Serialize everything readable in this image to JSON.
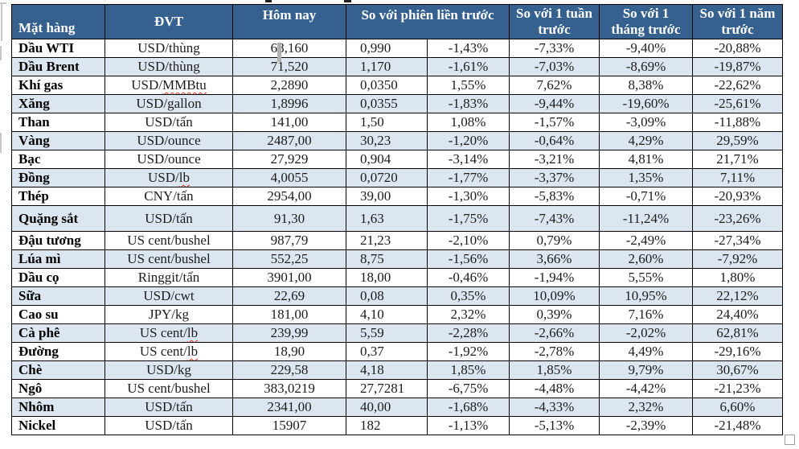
{
  "colors": {
    "header_bg": "#36618f",
    "header_text": "#ffffff",
    "row_bg": "#ffffff",
    "row_alt_bg": "#dce6f0",
    "border": "#000000",
    "spellcheck_squiggle": "#e03020",
    "value_text": "#1c1c1c"
  },
  "table": {
    "header": {
      "commodity": "Mặt hàng",
      "unit": "ĐVT",
      "today": "Hôm nay",
      "prev_session": "So với phiên liền trước",
      "week": "So với 1 tuần trước",
      "month": "So với 1 tháng trước",
      "year": "So với 1 năm trước"
    },
    "rows": [
      {
        "name": "Dầu WTI",
        "unit_pre": "USD/thùng",
        "unit_sq": "",
        "today": "68,160",
        "change_abs": "0,990",
        "change_pct": "-1,43%",
        "week_pct": "-7,33%",
        "month_pct": "-9,40%",
        "year_pct": "-20,88%",
        "alt": false,
        "tall": false
      },
      {
        "name": "Dầu Brent",
        "unit_pre": "USD/thùng",
        "unit_sq": "",
        "today": "71,520",
        "change_abs": "1,170",
        "change_pct": "-1,61%",
        "week_pct": "-7,03%",
        "month_pct": "-8,69%",
        "year_pct": "-19,87%",
        "alt": true,
        "tall": false
      },
      {
        "name": "Khí gas",
        "unit_pre": "USD/",
        "unit_sq": "MMBtu",
        "today": "2,2890",
        "change_abs": "0,0350",
        "change_pct": "1,55%",
        "week_pct": "7,62%",
        "month_pct": "8,38%",
        "year_pct": "-22,62%",
        "alt": false,
        "tall": false
      },
      {
        "name": "Xăng",
        "unit_pre": "USD/gallon",
        "unit_sq": "",
        "today": "1,8996",
        "change_abs": "0,0355",
        "change_pct": "-1,83%",
        "week_pct": "-9,44%",
        "month_pct": "-19,60%",
        "year_pct": "-25,61%",
        "alt": true,
        "tall": false
      },
      {
        "name": "Than",
        "unit_pre": "USD/tấn",
        "unit_sq": "",
        "today": "141,00",
        "change_abs": "1,50",
        "change_pct": "1,08%",
        "week_pct": "-1,57%",
        "month_pct": "-3,09%",
        "year_pct": "-11,88%",
        "alt": false,
        "tall": false
      },
      {
        "name": "Vàng",
        "unit_pre": "USD/ounce",
        "unit_sq": "",
        "today": "2487,00",
        "change_abs": "30,23",
        "change_pct": "-1,20%",
        "week_pct": "-0,64%",
        "month_pct": "4,29%",
        "year_pct": "29,59%",
        "alt": true,
        "tall": false
      },
      {
        "name": "Bạc",
        "unit_pre": "USD/ounce",
        "unit_sq": "",
        "today": "27,929",
        "change_abs": "0,904",
        "change_pct": "-3,14%",
        "week_pct": "-3,21%",
        "month_pct": "4,81%",
        "year_pct": "21,71%",
        "alt": false,
        "tall": false
      },
      {
        "name": "Đồng",
        "unit_pre": "USD/",
        "unit_sq": "lb",
        "today": "4,0055",
        "change_abs": "0,0720",
        "change_pct": "-1,77%",
        "week_pct": "-3,37%",
        "month_pct": "1,35%",
        "year_pct": "7,11%",
        "alt": true,
        "tall": false
      },
      {
        "name": "Thép",
        "unit_pre": "CNY/tấn",
        "unit_sq": "",
        "today": "2954,00",
        "change_abs": "39,00",
        "change_pct": "-1,30%",
        "week_pct": "-5,83%",
        "month_pct": "-0,71%",
        "year_pct": "-20,93%",
        "alt": false,
        "tall": false
      },
      {
        "name": "Quặng sắt",
        "unit_pre": "USD/tấn",
        "unit_sq": "",
        "today": "91,30",
        "change_abs": "1,63",
        "change_pct": "-1,75%",
        "week_pct": "-7,43%",
        "month_pct": "-11,24%",
        "year_pct": "-23,26%",
        "alt": true,
        "tall": true
      },
      {
        "name": "Đậu tương",
        "unit_pre": "US cent/bushel",
        "unit_sq": "",
        "today": "987,79",
        "change_abs": "21,23",
        "change_pct": "-2,10%",
        "week_pct": "0,79%",
        "month_pct": "-2,49%",
        "year_pct": "-27,34%",
        "alt": false,
        "tall": false
      },
      {
        "name": "Lúa mì",
        "unit_pre": "US cent/bushel",
        "unit_sq": "",
        "today": "552,25",
        "change_abs": "8,75",
        "change_pct": "-1,56%",
        "week_pct": "3,66%",
        "month_pct": "2,60%",
        "year_pct": "-7,92%",
        "alt": true,
        "tall": false
      },
      {
        "name": "Dầu cọ",
        "unit_pre": "Ringgit/tấn",
        "unit_sq": "",
        "today": "3901,00",
        "change_abs": "18,00",
        "change_pct": "-0,46%",
        "week_pct": "-1,94%",
        "month_pct": "5,55%",
        "year_pct": "1,80%",
        "alt": false,
        "tall": false
      },
      {
        "name": "Sữa",
        "unit_pre": "USD/cwt",
        "unit_sq": "",
        "today": "22,69",
        "change_abs": "0,08",
        "change_pct": "0,35%",
        "week_pct": "10,09%",
        "month_pct": "10,95%",
        "year_pct": "22,12%",
        "alt": true,
        "tall": false
      },
      {
        "name": "Cao su",
        "unit_pre": "JPY/kg",
        "unit_sq": "",
        "today": "181,00",
        "change_abs": "4,10",
        "change_pct": "2,32%",
        "week_pct": "0,39%",
        "month_pct": "7,16%",
        "year_pct": "24,40%",
        "alt": false,
        "tall": false
      },
      {
        "name": "Cà phê",
        "unit_pre": "US cent/",
        "unit_sq": "lb",
        "today": "239,99",
        "change_abs": "5,59",
        "change_pct": "-2,28%",
        "week_pct": "-2,66%",
        "month_pct": "-2,02%",
        "year_pct": "62,81%",
        "alt": true,
        "tall": false
      },
      {
        "name": "Đường",
        "unit_pre": "US cent/",
        "unit_sq": "lb",
        "today": "18,90",
        "change_abs": "0,37",
        "change_pct": "-1,92%",
        "week_pct": "-2,78%",
        "month_pct": "4,49%",
        "year_pct": "-29,16%",
        "alt": false,
        "tall": false
      },
      {
        "name": "Chè",
        "unit_pre": "USD/kg",
        "unit_sq": "",
        "today": "229,58",
        "change_abs": "4,18",
        "change_pct": "1,85%",
        "week_pct": "1,85%",
        "month_pct": "9,79%",
        "year_pct": "30,67%",
        "alt": true,
        "tall": false
      },
      {
        "name": "Ngô",
        "unit_pre": "US cent/bushel",
        "unit_sq": "",
        "today": "383,0219",
        "change_abs": "27,7281",
        "change_pct": "-6,75%",
        "week_pct": "-4,48%",
        "month_pct": "-4,42%",
        "year_pct": "-21,23%",
        "alt": false,
        "tall": false
      },
      {
        "name": "Nhôm",
        "unit_pre": "USD/tấn",
        "unit_sq": "",
        "today": "2341,00",
        "change_abs": "40,00",
        "change_pct": "-1,68%",
        "week_pct": "-4,33%",
        "month_pct": "2,32%",
        "year_pct": "6,60%",
        "alt": true,
        "tall": false
      },
      {
        "name": "Nickel",
        "unit_pre": "USD/tấn",
        "unit_sq": "",
        "today": "15907",
        "change_abs": "182",
        "change_pct": "-1,13%",
        "week_pct": "-5,13%",
        "month_pct": "-2,39%",
        "year_pct": "-21,48%",
        "alt": false,
        "tall": false
      }
    ]
  }
}
